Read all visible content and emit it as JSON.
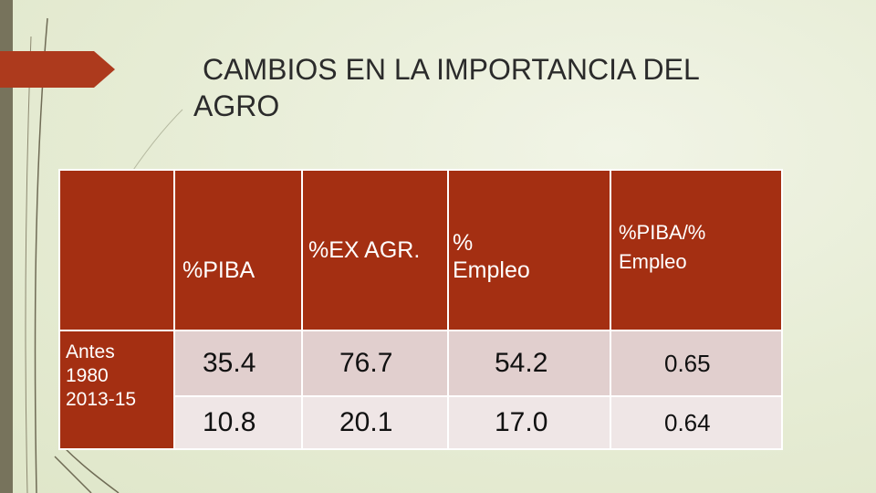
{
  "title": {
    "line1": "CAMBIOS  EN LA IMPORTANCIA DEL",
    "line2": "AGRO"
  },
  "table": {
    "headers": [
      "",
      "%PIBA",
      "%EX AGR.",
      "%\nEmpleo",
      "%PIBA/%\nEmpleo"
    ],
    "header_empleo": [
      "%",
      "Empleo"
    ],
    "header_ratio": [
      "%PIBA/%",
      "Empleo"
    ],
    "row_labels": [
      "Antes",
      "1980",
      "2013-15"
    ],
    "rows": [
      [
        "35.4",
        "76.7",
        "54.2",
        "0.65"
      ],
      [
        "10.8",
        "20.1",
        "17.0",
        "0.64"
      ]
    ]
  },
  "colors": {
    "header_bg": "#a42f12",
    "row1_bg": "#e1cfce",
    "row2_bg": "#efe6e6",
    "accent": "#ad3a1d",
    "left_bar": "#77735c"
  }
}
